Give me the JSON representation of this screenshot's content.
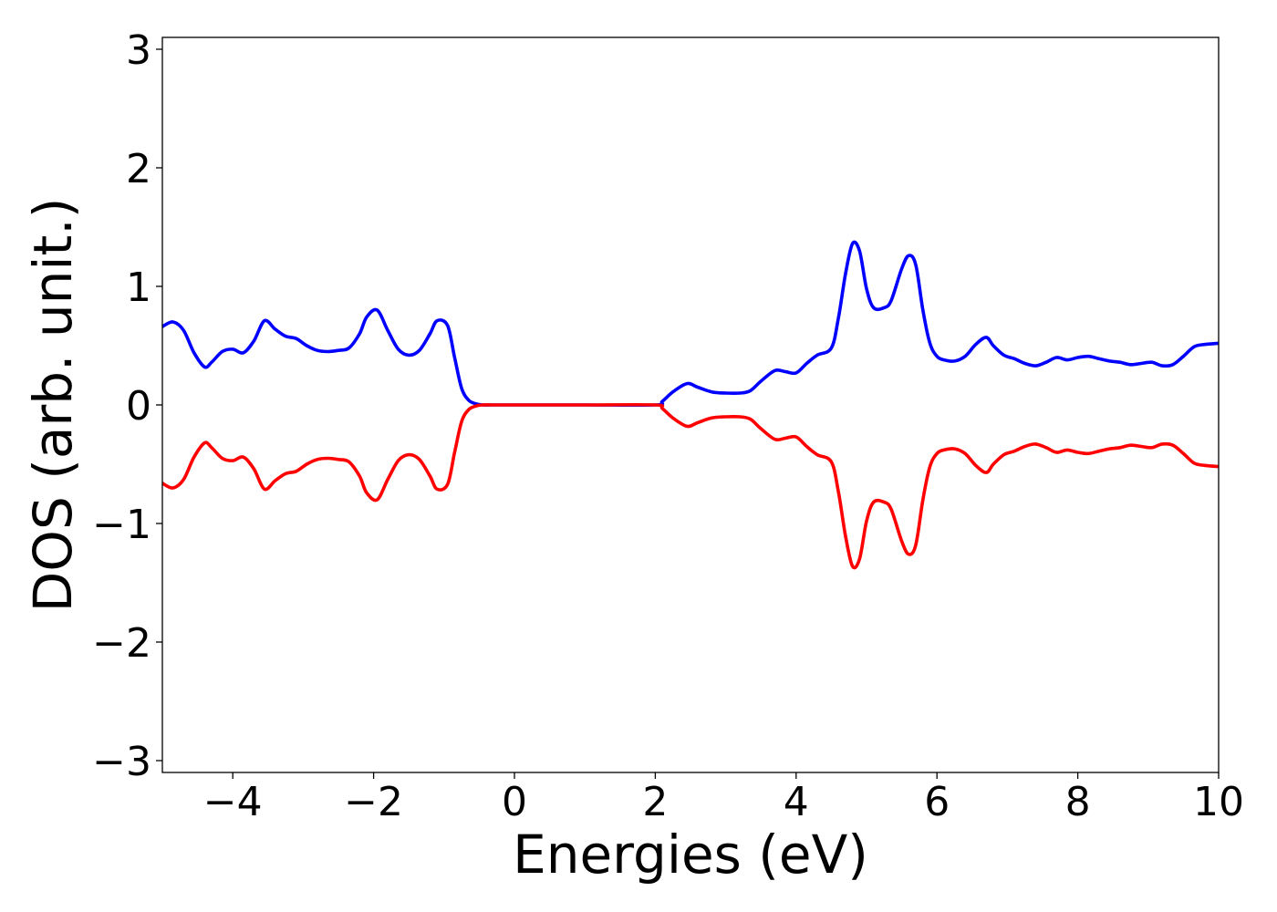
{
  "chart_data": {
    "type": "line",
    "title": "",
    "xlabel": "Energies (eV)",
    "ylabel": "DOS (arb. unit.)",
    "xlim": [
      -5,
      10
    ],
    "ylim": [
      -3.1,
      3.1
    ],
    "x_ticks": [
      -4,
      -2,
      0,
      2,
      4,
      6,
      8,
      10
    ],
    "x_tick_labels": [
      "−4",
      "−2",
      "0",
      "2",
      "4",
      "6",
      "8",
      "10"
    ],
    "y_ticks": [
      -3,
      -2,
      -1,
      0,
      1,
      2,
      3
    ],
    "y_tick_labels": [
      "−3",
      "−2",
      "−1",
      "0",
      "1",
      "2",
      "3"
    ],
    "grid": false,
    "legend": "none",
    "series": [
      {
        "color": "#0000ff",
        "x": [
          -5.0,
          -4.85,
          -4.7,
          -4.55,
          -4.4,
          -4.3,
          -4.15,
          -4.0,
          -3.85,
          -3.7,
          -3.55,
          -3.4,
          -3.25,
          -3.1,
          -2.95,
          -2.8,
          -2.65,
          -2.5,
          -2.35,
          -2.2,
          -2.1,
          -1.95,
          -1.8,
          -1.65,
          -1.5,
          -1.35,
          -1.2,
          -1.1,
          -0.95,
          -0.85,
          -0.75,
          -0.65,
          -0.55,
          -0.45,
          -0.3,
          0.0,
          1.0,
          2.0,
          2.1,
          2.25,
          2.45,
          2.6,
          2.8,
          3.0,
          3.2,
          3.35,
          3.5,
          3.7,
          3.85,
          4.0,
          4.15,
          4.3,
          4.5,
          4.6,
          4.7,
          4.8,
          4.9,
          5.0,
          5.1,
          5.25,
          5.35,
          5.5,
          5.6,
          5.7,
          5.8,
          5.9,
          6.0,
          6.1,
          6.25,
          6.4,
          6.55,
          6.7,
          6.8,
          6.95,
          7.1,
          7.25,
          7.4,
          7.55,
          7.7,
          7.85,
          8.0,
          8.15,
          8.3,
          8.45,
          8.6,
          8.75,
          8.9,
          9.05,
          9.2,
          9.35,
          9.5,
          9.65,
          9.8,
          10.0
        ],
        "y": [
          0.66,
          0.7,
          0.63,
          0.44,
          0.32,
          0.36,
          0.45,
          0.47,
          0.44,
          0.54,
          0.71,
          0.64,
          0.58,
          0.56,
          0.5,
          0.46,
          0.45,
          0.46,
          0.48,
          0.6,
          0.74,
          0.8,
          0.63,
          0.47,
          0.42,
          0.46,
          0.6,
          0.71,
          0.67,
          0.4,
          0.14,
          0.04,
          0.01,
          0.0,
          0.0,
          0.0,
          0.0,
          0.0,
          0.03,
          0.11,
          0.18,
          0.15,
          0.11,
          0.1,
          0.1,
          0.12,
          0.2,
          0.29,
          0.28,
          0.27,
          0.35,
          0.42,
          0.48,
          0.73,
          1.1,
          1.36,
          1.3,
          0.98,
          0.82,
          0.82,
          0.88,
          1.15,
          1.26,
          1.18,
          0.8,
          0.52,
          0.41,
          0.38,
          0.37,
          0.41,
          0.51,
          0.57,
          0.5,
          0.42,
          0.39,
          0.35,
          0.33,
          0.36,
          0.4,
          0.38,
          0.4,
          0.41,
          0.39,
          0.37,
          0.36,
          0.34,
          0.35,
          0.36,
          0.33,
          0.34,
          0.41,
          0.49,
          0.51,
          0.52
        ]
      },
      {
        "color": "#ff0000",
        "x": [
          -5.0,
          -4.85,
          -4.7,
          -4.55,
          -4.4,
          -4.3,
          -4.15,
          -4.0,
          -3.85,
          -3.7,
          -3.55,
          -3.4,
          -3.25,
          -3.1,
          -2.95,
          -2.8,
          -2.65,
          -2.5,
          -2.35,
          -2.2,
          -2.1,
          -1.95,
          -1.8,
          -1.65,
          -1.5,
          -1.35,
          -1.2,
          -1.1,
          -0.95,
          -0.85,
          -0.75,
          -0.65,
          -0.55,
          -0.45,
          -0.3,
          0.0,
          1.0,
          2.0,
          2.1,
          2.25,
          2.45,
          2.6,
          2.8,
          3.0,
          3.2,
          3.35,
          3.5,
          3.7,
          3.85,
          4.0,
          4.15,
          4.3,
          4.5,
          4.6,
          4.7,
          4.8,
          4.9,
          5.0,
          5.1,
          5.25,
          5.35,
          5.5,
          5.6,
          5.7,
          5.8,
          5.9,
          6.0,
          6.1,
          6.25,
          6.4,
          6.55,
          6.7,
          6.8,
          6.95,
          7.1,
          7.25,
          7.4,
          7.55,
          7.7,
          7.85,
          8.0,
          8.15,
          8.3,
          8.45,
          8.6,
          8.75,
          8.9,
          9.05,
          9.2,
          9.35,
          9.5,
          9.65,
          9.8,
          10.0
        ],
        "y": [
          -0.66,
          -0.7,
          -0.63,
          -0.44,
          -0.32,
          -0.36,
          -0.45,
          -0.47,
          -0.44,
          -0.54,
          -0.71,
          -0.64,
          -0.58,
          -0.56,
          -0.5,
          -0.46,
          -0.45,
          -0.46,
          -0.48,
          -0.6,
          -0.74,
          -0.8,
          -0.63,
          -0.47,
          -0.42,
          -0.46,
          -0.6,
          -0.71,
          -0.67,
          -0.4,
          -0.14,
          -0.04,
          -0.01,
          0.0,
          0.0,
          0.0,
          0.0,
          0.0,
          -0.03,
          -0.11,
          -0.18,
          -0.15,
          -0.11,
          -0.1,
          -0.1,
          -0.12,
          -0.2,
          -0.29,
          -0.28,
          -0.27,
          -0.35,
          -0.42,
          -0.48,
          -0.73,
          -1.1,
          -1.36,
          -1.3,
          -0.98,
          -0.82,
          -0.82,
          -0.88,
          -1.15,
          -1.26,
          -1.18,
          -0.8,
          -0.52,
          -0.41,
          -0.38,
          -0.37,
          -0.41,
          -0.51,
          -0.57,
          -0.5,
          -0.42,
          -0.39,
          -0.35,
          -0.33,
          -0.36,
          -0.4,
          -0.38,
          -0.4,
          -0.41,
          -0.39,
          -0.37,
          -0.36,
          -0.34,
          -0.35,
          -0.36,
          -0.33,
          -0.34,
          -0.41,
          -0.49,
          -0.51,
          -0.52
        ]
      }
    ]
  }
}
